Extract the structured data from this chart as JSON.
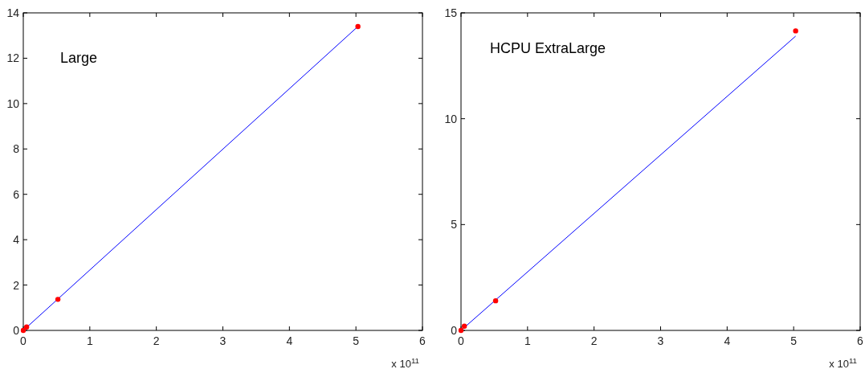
{
  "chart_data": [
    {
      "type": "line",
      "title": "Large",
      "xlim": [
        0,
        6
      ],
      "xticks": [
        0,
        1,
        2,
        3,
        4,
        5,
        6
      ],
      "ylim": [
        0,
        14
      ],
      "yticks": [
        0,
        2,
        4,
        6,
        8,
        10,
        12,
        14
      ],
      "annotations": [
        "x 10$^{11}$"
      ],
      "series": [
        {
          "color": "#0000ff",
          "x": [
            0,
            5.03
          ],
          "values": [
            0,
            13.4
          ]
        },
        {
          "type": "scatter",
          "color": "#ff0000",
          "marker": "circle",
          "x": [
            0,
            0.05,
            0.52,
            5.03
          ],
          "values": [
            0,
            0.15,
            1.37,
            13.4
          ]
        }
      ]
    },
    {
      "type": "line",
      "title": "HCPU ExtraLarge",
      "xlim": [
        0,
        6
      ],
      "xticks": [
        0,
        1,
        2,
        3,
        4,
        5,
        6
      ],
      "ylim": [
        0,
        15
      ],
      "yticks": [
        0,
        5,
        10,
        15
      ],
      "annotations": [
        "x 10$^{11}$"
      ],
      "series": [
        {
          "color": "#0000ff",
          "x": [
            0,
            5.03
          ],
          "values": [
            0,
            13.9
          ]
        },
        {
          "type": "scatter",
          "color": "#ff0000",
          "marker": "circle",
          "x": [
            0,
            0.05,
            0.52,
            5.03
          ],
          "values": [
            0,
            0.2,
            1.4,
            14.15
          ]
        }
      ]
    }
  ]
}
